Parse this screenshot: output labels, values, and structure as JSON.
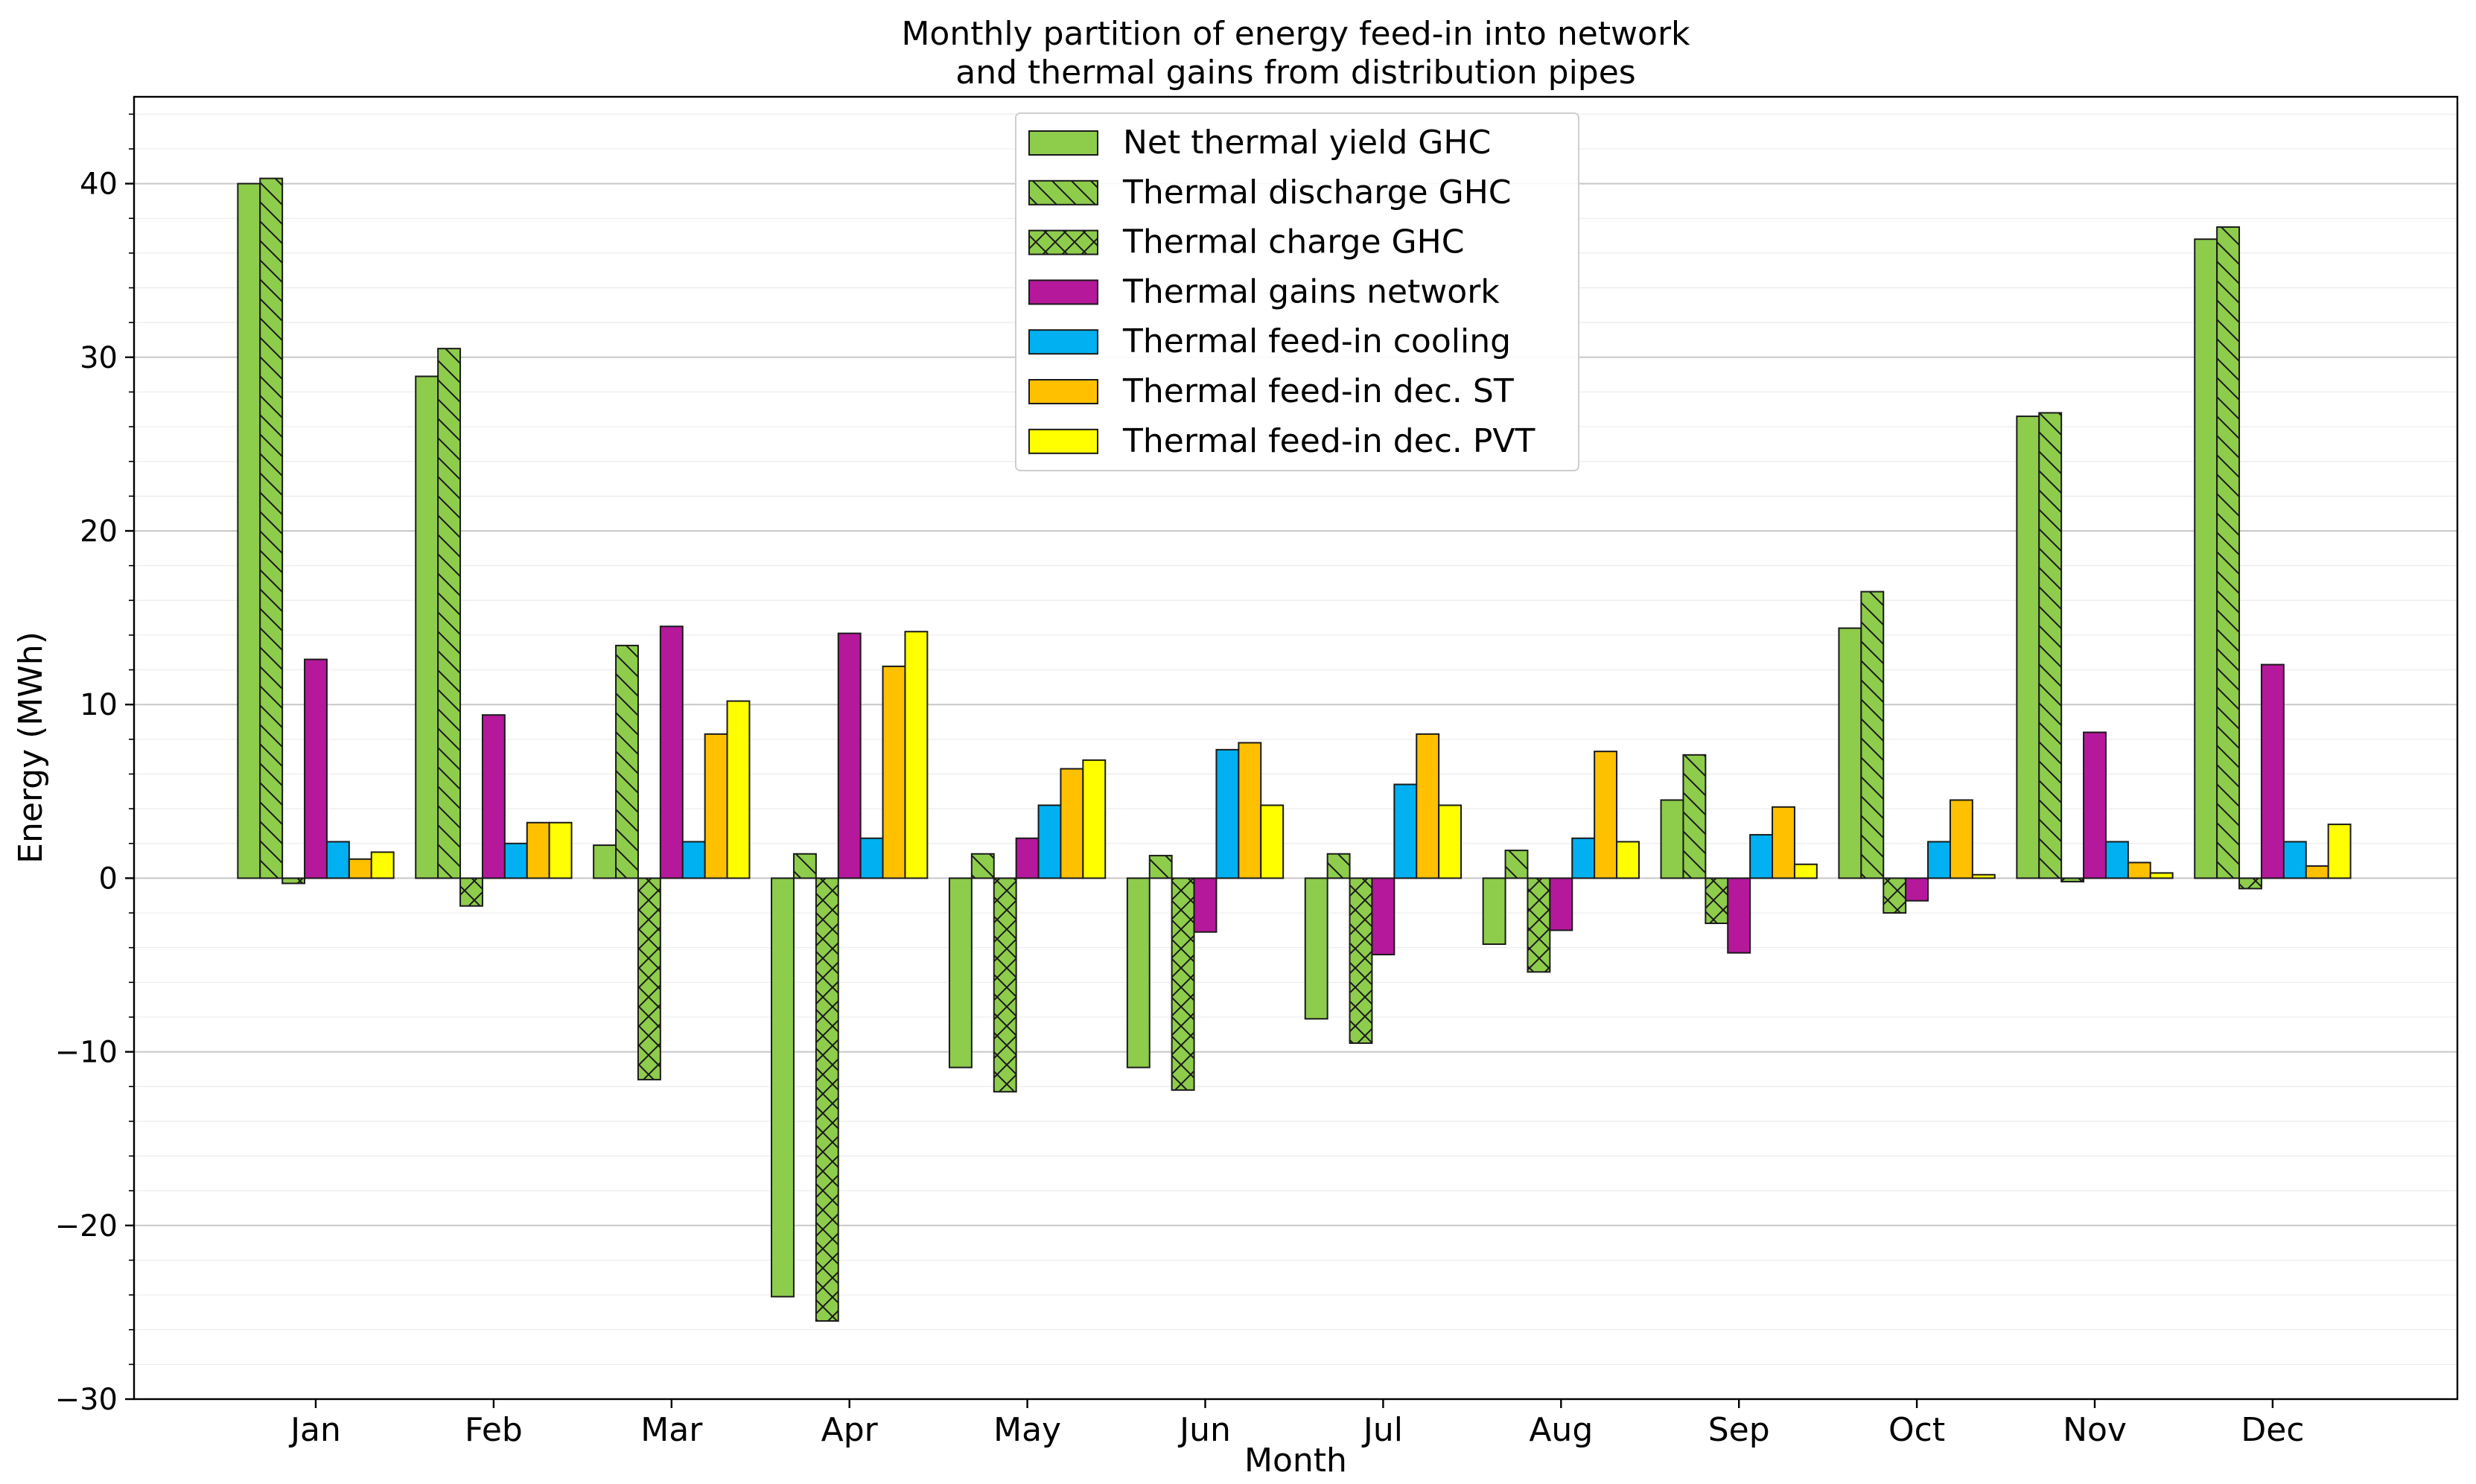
{
  "chart_data": {
    "type": "bar",
    "title": "Monthly partition of energy feed-in into network",
    "subtitle": "and thermal gains from distribution pipes",
    "xlabel": "Month",
    "ylabel": "Energy (MWh)",
    "ylim": [
      -30,
      45
    ],
    "yticks": [
      -30,
      -20,
      -10,
      0,
      10,
      20,
      30,
      40
    ],
    "ytick_labels": [
      "−30",
      "−20",
      "−10",
      "0",
      "10",
      "20",
      "30",
      "40"
    ],
    "grid": true,
    "legend_position": "top-center",
    "categories": [
      "Jan",
      "Feb",
      "Mar",
      "Apr",
      "May",
      "Jun",
      "Jul",
      "Aug",
      "Sep",
      "Oct",
      "Nov",
      "Dec"
    ],
    "series": [
      {
        "name": "Net thermal yield GHC",
        "color": "#8ecc4c",
        "hatch": "none",
        "values": [
          40.0,
          28.9,
          1.9,
          -24.1,
          -10.9,
          -10.9,
          -8.1,
          -3.8,
          4.5,
          14.4,
          26.6,
          36.8
        ]
      },
      {
        "name": "Thermal discharge GHC",
        "color": "#8ecc4c",
        "hatch": "backslash",
        "values": [
          40.3,
          30.5,
          13.4,
          1.4,
          1.4,
          1.3,
          1.4,
          1.6,
          7.1,
          16.5,
          26.8,
          37.5
        ]
      },
      {
        "name": "Thermal charge GHC",
        "color": "#8ecc4c",
        "hatch": "cross",
        "values": [
          -0.3,
          -1.6,
          -11.6,
          -25.5,
          -12.3,
          -12.2,
          -9.5,
          -5.4,
          -2.6,
          -2.0,
          -0.2,
          -0.6
        ]
      },
      {
        "name": "Thermal gains network",
        "color": "#b5189b",
        "hatch": "none",
        "values": [
          12.6,
          9.4,
          14.5,
          14.1,
          2.3,
          -3.1,
          -4.4,
          -3.0,
          -4.3,
          -1.3,
          8.4,
          12.3
        ]
      },
      {
        "name": "Thermal feed-in cooling",
        "color": "#00b0f0",
        "hatch": "none",
        "values": [
          2.1,
          2.0,
          2.1,
          2.3,
          4.2,
          7.4,
          5.4,
          2.3,
          2.5,
          2.1,
          2.1,
          2.1
        ]
      },
      {
        "name": "Thermal feed-in dec. ST",
        "color": "#ffc000",
        "hatch": "none",
        "values": [
          1.1,
          3.2,
          8.3,
          12.2,
          6.3,
          7.8,
          8.3,
          7.3,
          4.1,
          4.5,
          0.9,
          0.7
        ]
      },
      {
        "name": "Thermal feed-in dec. PVT",
        "color": "#ffff00",
        "hatch": "none",
        "values": [
          1.5,
          3.2,
          10.2,
          14.2,
          6.8,
          4.2,
          4.2,
          2.1,
          0.8,
          0.2,
          0.3,
          3.1
        ]
      }
    ]
  }
}
